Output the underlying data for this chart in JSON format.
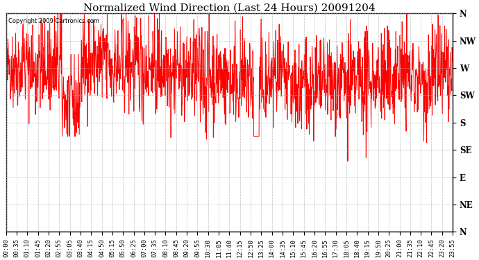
{
  "title": "Normalized Wind Direction (Last 24 Hours) 20091204",
  "copyright_text": "Copyright 2009 Cartronics.com",
  "line_color": "#ff0000",
  "background_color": "#ffffff",
  "grid_color": "#b0b0b0",
  "ytick_labels": [
    "N",
    "NW",
    "W",
    "SW",
    "S",
    "SE",
    "E",
    "NE",
    "N"
  ],
  "ytick_values": [
    8,
    7,
    6,
    5,
    4,
    3,
    2,
    1,
    0
  ],
  "ylim": [
    0,
    8
  ],
  "xtick_labels": [
    "00:00",
    "00:35",
    "01:10",
    "01:45",
    "02:20",
    "02:55",
    "03:05",
    "03:40",
    "04:15",
    "04:50",
    "05:15",
    "05:50",
    "06:25",
    "07:00",
    "07:35",
    "08:10",
    "08:45",
    "09:20",
    "09:55",
    "10:30",
    "11:05",
    "11:40",
    "12:15",
    "12:50",
    "13:25",
    "14:00",
    "14:35",
    "15:10",
    "15:45",
    "16:20",
    "16:55",
    "17:30",
    "18:05",
    "18:40",
    "19:15",
    "19:50",
    "20:25",
    "21:00",
    "21:35",
    "22:10",
    "22:45",
    "23:20",
    "23:55"
  ],
  "num_points": 1440,
  "seed": 42,
  "title_fontsize": 11,
  "tick_fontsize": 6.5,
  "ylabel_fontsize": 8.5
}
